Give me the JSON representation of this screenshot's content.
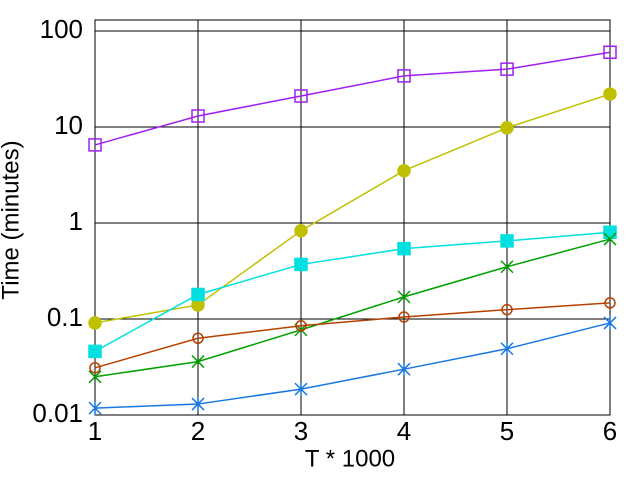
{
  "chart_data": {
    "type": "line",
    "x_label": "T * 1000",
    "y_label": "Time (minutes)",
    "x": [
      1,
      2,
      3,
      4,
      5,
      6
    ],
    "xlim": [
      1,
      6
    ],
    "xticks": [
      1,
      2,
      3,
      4,
      5,
      6
    ],
    "ylim": [
      0.01,
      130
    ],
    "yticks": [
      0.01,
      0.1,
      1,
      10,
      100
    ],
    "y_scale": "log",
    "grid": true,
    "series": [
      {
        "color": "#a020f0",
        "marker": "square-open",
        "values": [
          6.5,
          13,
          21,
          34,
          40,
          60
        ]
      },
      {
        "color": "#c0c000",
        "marker": "circle-filled",
        "values": [
          0.091,
          0.14,
          0.83,
          3.5,
          9.8,
          22
        ]
      },
      {
        "color": "#00e0e0",
        "marker": "square-filled",
        "values": [
          0.046,
          0.18,
          0.37,
          0.54,
          0.65,
          0.8
        ]
      },
      {
        "color": "#00a000",
        "marker": "x",
        "values": [
          0.025,
          0.036,
          0.077,
          0.17,
          0.35,
          0.68
        ]
      },
      {
        "color": "#b84000",
        "marker": "circle-open",
        "values": [
          0.031,
          0.063,
          0.085,
          0.105,
          0.125,
          0.147
        ]
      },
      {
        "color": "#1878e0",
        "marker": "star",
        "values": [
          0.0118,
          0.013,
          0.0186,
          0.03,
          0.049,
          0.091
        ]
      }
    ]
  }
}
